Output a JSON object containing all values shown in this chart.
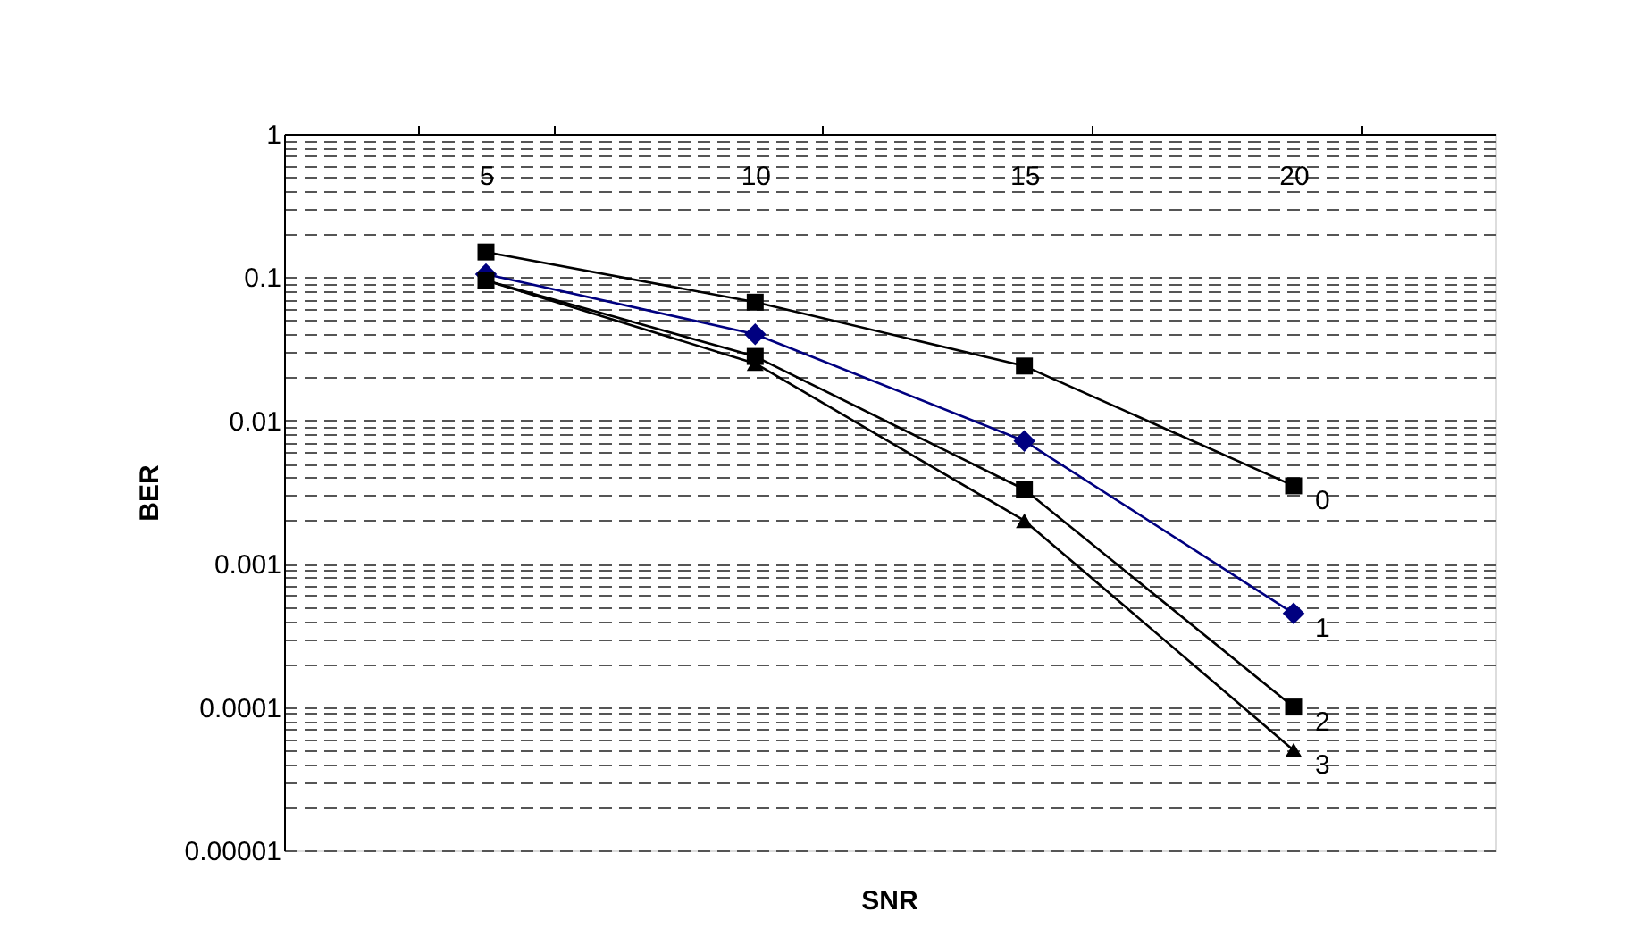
{
  "chart_data": {
    "type": "line",
    "xlabel": "SNR",
    "ylabel": "BER",
    "categories": [
      "5",
      "10",
      "15",
      "20"
    ],
    "series": [
      {
        "name": "0",
        "color": "#000000",
        "marker": "square",
        "values": [
          0.15,
          0.067,
          0.024,
          0.0035
        ]
      },
      {
        "name": "1",
        "color": "#000080",
        "marker": "diamond",
        "values": [
          0.105,
          0.04,
          0.0072,
          0.00045
        ]
      },
      {
        "name": "2",
        "color": "#000000",
        "marker": "square",
        "values": [
          0.095,
          0.028,
          0.0033,
          0.0001
        ]
      },
      {
        "name": "3",
        "color": "#000000",
        "marker": "triangle",
        "values": [
          0.095,
          0.025,
          0.002,
          5e-05
        ]
      }
    ],
    "log": "y",
    "ylim": [
      1e-05,
      1
    ],
    "yticks": [
      {
        "value": 1e-05,
        "label": "0.00001"
      },
      {
        "value": 0.0001,
        "label": "0.0001"
      },
      {
        "value": 0.001,
        "label": "0.001"
      },
      {
        "value": 0.01,
        "label": "0.01"
      },
      {
        "value": 0.1,
        "label": "0.1"
      },
      1
    ],
    "grid": "y",
    "line_style": "solid"
  }
}
